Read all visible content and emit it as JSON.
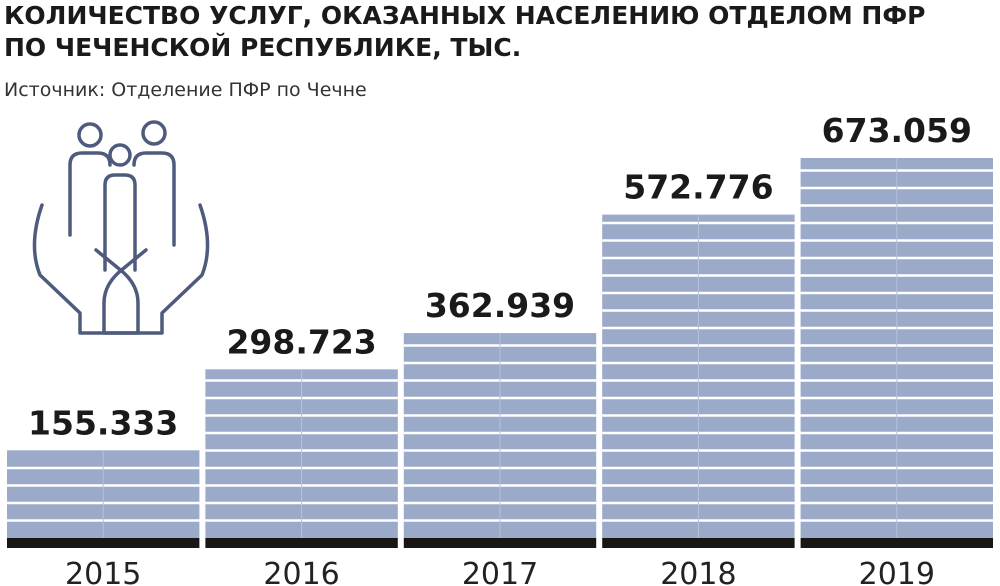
{
  "chart_data": {
    "type": "bar",
    "title": [
      "КОЛИЧЕСТВО УСЛУГ, ОКАЗАННЫХ НАСЕЛЕНИЮ ОТДЕЛОМ ПФР",
      "ПО ЧЕЧЕНСКОЙ РЕСПУБЛИКЕ, ТЫС."
    ],
    "subtitle": "Источник: Отделение ПФР по Чечне",
    "categories": [
      "2015",
      "2016",
      "2017",
      "2018",
      "2019"
    ],
    "values": [
      155.333,
      298.723,
      362.939,
      572.776,
      673.059
    ],
    "color": "#9aaac8"
  }
}
